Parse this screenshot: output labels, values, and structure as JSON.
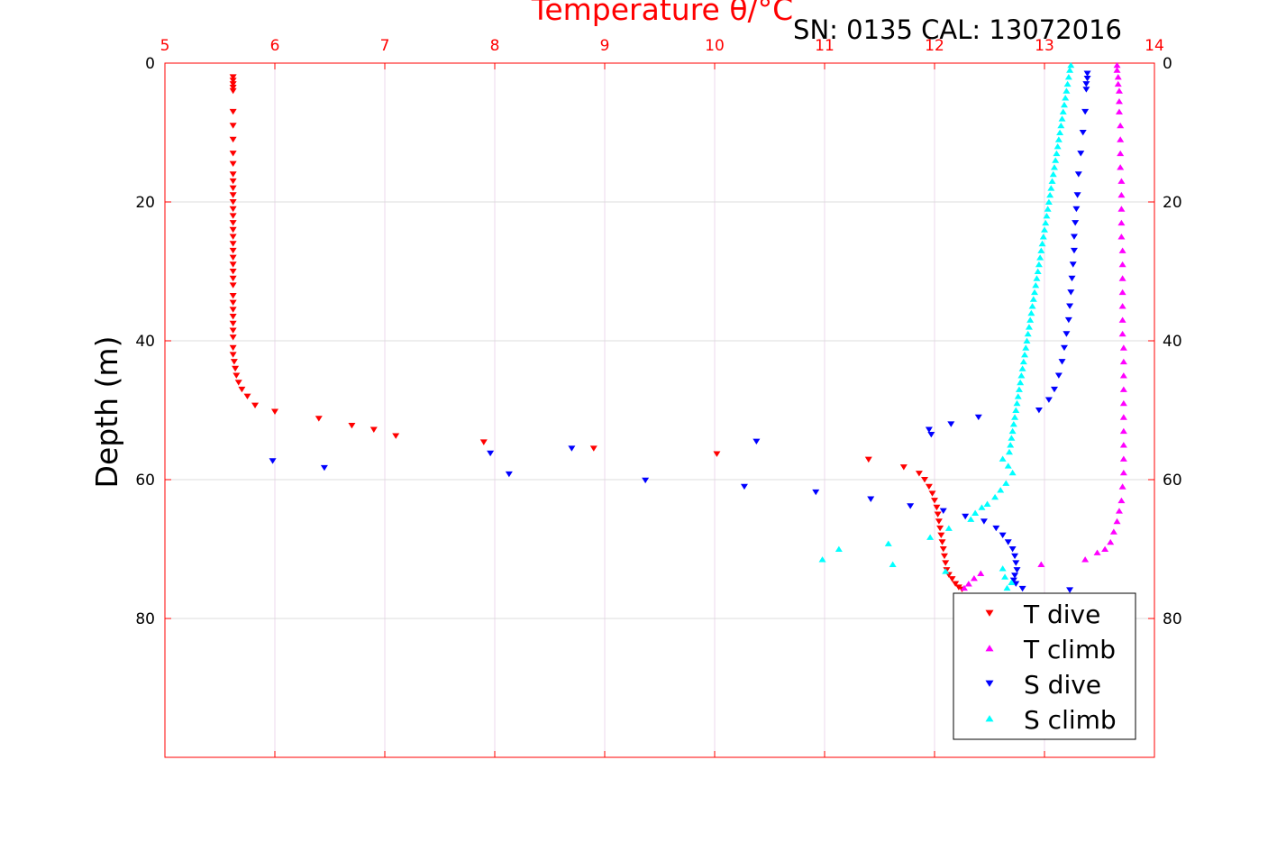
{
  "chart_data": {
    "type": "scatter",
    "title": "Temperature θ/°C",
    "subtitle": "SN: 0135  CAL: 13072016",
    "xlabel": "Temperature θ/°C",
    "ylabel": "Depth (m)",
    "xlim": [
      5,
      14
    ],
    "ylim": [
      0,
      100
    ],
    "y_reversed": true,
    "x_ticks": [
      "5",
      "6",
      "7",
      "8",
      "9",
      "10",
      "11",
      "12",
      "13",
      "14"
    ],
    "y_ticks": [
      "0",
      "20",
      "40",
      "60",
      "80"
    ],
    "grid": true,
    "legend_position": "bottom-right",
    "series": [
      {
        "name": "T dive",
        "color": "#ff0000",
        "marker": "triangle-down",
        "points": [
          [
            5.62,
            2
          ],
          [
            5.62,
            2.5
          ],
          [
            5.62,
            3
          ],
          [
            5.62,
            3.5
          ],
          [
            5.62,
            4
          ],
          [
            5.62,
            7
          ],
          [
            5.62,
            9
          ],
          [
            5.62,
            11
          ],
          [
            5.62,
            13
          ],
          [
            5.62,
            14.5
          ],
          [
            5.62,
            16
          ],
          [
            5.62,
            17
          ],
          [
            5.62,
            18
          ],
          [
            5.62,
            19
          ],
          [
            5.62,
            20
          ],
          [
            5.62,
            21
          ],
          [
            5.62,
            22
          ],
          [
            5.62,
            23
          ],
          [
            5.62,
            24
          ],
          [
            5.62,
            25
          ],
          [
            5.62,
            26
          ],
          [
            5.62,
            27
          ],
          [
            5.62,
            28
          ],
          [
            5.62,
            29
          ],
          [
            5.62,
            30
          ],
          [
            5.62,
            31
          ],
          [
            5.62,
            32
          ],
          [
            5.62,
            33.5
          ],
          [
            5.62,
            34.5
          ],
          [
            5.62,
            35.5
          ],
          [
            5.62,
            36.5
          ],
          [
            5.62,
            37.5
          ],
          [
            5.62,
            38.5
          ],
          [
            5.62,
            39.5
          ],
          [
            5.62,
            41
          ],
          [
            5.62,
            42
          ],
          [
            5.63,
            43
          ],
          [
            5.64,
            44
          ],
          [
            5.65,
            45
          ],
          [
            5.67,
            46
          ],
          [
            5.7,
            47
          ],
          [
            5.75,
            48
          ],
          [
            5.82,
            49.3
          ],
          [
            6.0,
            50.2
          ],
          [
            6.4,
            51.2
          ],
          [
            6.7,
            52.2
          ],
          [
            6.9,
            52.8
          ],
          [
            7.1,
            53.7
          ],
          [
            7.9,
            54.6
          ],
          [
            8.9,
            55.5
          ],
          [
            10.02,
            56.3
          ],
          [
            11.4,
            57.1
          ],
          [
            11.72,
            58.2
          ],
          [
            11.86,
            59.1
          ],
          [
            11.91,
            60
          ],
          [
            11.95,
            61
          ],
          [
            11.98,
            62
          ],
          [
            12.0,
            63
          ],
          [
            12.02,
            64
          ],
          [
            12.03,
            65
          ],
          [
            12.04,
            66
          ],
          [
            12.05,
            67
          ],
          [
            12.06,
            68
          ],
          [
            12.07,
            69
          ],
          [
            12.08,
            70
          ],
          [
            12.09,
            71
          ],
          [
            12.1,
            72
          ],
          [
            12.11,
            73
          ],
          [
            12.13,
            73.7
          ],
          [
            12.16,
            74.3
          ],
          [
            12.19,
            75
          ],
          [
            12.22,
            75.5
          ],
          [
            12.25,
            75.8
          ]
        ]
      },
      {
        "name": "T climb",
        "color": "#ff00ff",
        "marker": "triangle-up",
        "points": [
          [
            13.66,
            0.3
          ],
          [
            13.66,
            1
          ],
          [
            13.67,
            2
          ],
          [
            13.67,
            3
          ],
          [
            13.68,
            4
          ],
          [
            13.68,
            5.5
          ],
          [
            13.68,
            7
          ],
          [
            13.69,
            9
          ],
          [
            13.69,
            11
          ],
          [
            13.69,
            13
          ],
          [
            13.69,
            15
          ],
          [
            13.7,
            17
          ],
          [
            13.7,
            19
          ],
          [
            13.7,
            21
          ],
          [
            13.7,
            23
          ],
          [
            13.7,
            25
          ],
          [
            13.71,
            27
          ],
          [
            13.71,
            29
          ],
          [
            13.71,
            31
          ],
          [
            13.71,
            33
          ],
          [
            13.71,
            35
          ],
          [
            13.71,
            37
          ],
          [
            13.71,
            39
          ],
          [
            13.72,
            41
          ],
          [
            13.72,
            43
          ],
          [
            13.72,
            45
          ],
          [
            13.72,
            47
          ],
          [
            13.72,
            49
          ],
          [
            13.72,
            51
          ],
          [
            13.72,
            53
          ],
          [
            13.72,
            55
          ],
          [
            13.72,
            57
          ],
          [
            13.72,
            59
          ],
          [
            13.71,
            61
          ],
          [
            13.7,
            63
          ],
          [
            13.68,
            64.5
          ],
          [
            13.66,
            66
          ],
          [
            13.63,
            67.5
          ],
          [
            13.6,
            69
          ],
          [
            13.55,
            70
          ],
          [
            13.48,
            70.5
          ],
          [
            13.37,
            71.5
          ],
          [
            12.97,
            72.2
          ],
          [
            12.42,
            73.5
          ],
          [
            12.36,
            74.2
          ],
          [
            12.31,
            75
          ],
          [
            12.27,
            75.6
          ]
        ]
      },
      {
        "name": "S dive",
        "color": "#0000ff",
        "marker": "triangle-down",
        "points": [
          [
            13.39,
            1.5
          ],
          [
            13.39,
            2.2
          ],
          [
            13.38,
            3
          ],
          [
            13.38,
            3.8
          ],
          [
            13.37,
            7
          ],
          [
            13.35,
            10
          ],
          [
            13.33,
            13
          ],
          [
            13.31,
            16
          ],
          [
            13.3,
            19
          ],
          [
            13.29,
            21
          ],
          [
            13.28,
            23
          ],
          [
            13.27,
            25
          ],
          [
            13.27,
            27
          ],
          [
            13.26,
            29
          ],
          [
            13.25,
            31
          ],
          [
            13.24,
            33
          ],
          [
            13.23,
            35
          ],
          [
            13.22,
            37
          ],
          [
            13.2,
            39
          ],
          [
            13.18,
            41
          ],
          [
            13.16,
            43
          ],
          [
            13.13,
            45
          ],
          [
            13.09,
            47
          ],
          [
            13.04,
            48.5
          ],
          [
            12.95,
            50
          ],
          [
            12.4,
            51
          ],
          [
            12.15,
            52
          ],
          [
            11.95,
            52.8
          ],
          [
            11.97,
            53.5
          ],
          [
            10.38,
            54.5
          ],
          [
            8.7,
            55.5
          ],
          [
            7.96,
            56.2
          ],
          [
            5.98,
            57.3
          ],
          [
            6.45,
            58.3
          ],
          [
            8.13,
            59.2
          ],
          [
            9.37,
            60.1
          ],
          [
            10.27,
            61
          ],
          [
            10.92,
            61.8
          ],
          [
            11.42,
            62.8
          ],
          [
            11.78,
            63.8
          ],
          [
            12.08,
            64.5
          ],
          [
            12.28,
            65.3
          ],
          [
            12.45,
            66
          ],
          [
            12.56,
            67
          ],
          [
            12.62,
            68
          ],
          [
            12.67,
            69
          ],
          [
            12.71,
            70
          ],
          [
            12.73,
            71
          ],
          [
            12.74,
            72
          ],
          [
            12.75,
            73
          ],
          [
            12.73,
            73.8
          ],
          [
            12.72,
            74.5
          ],
          [
            12.74,
            75
          ],
          [
            12.8,
            75.7
          ],
          [
            13.23,
            75.9
          ]
        ]
      },
      {
        "name": "S climb",
        "color": "#00ffff",
        "marker": "triangle-up",
        "points": [
          [
            13.24,
            0.3
          ],
          [
            13.23,
            1
          ],
          [
            13.22,
            2
          ],
          [
            13.21,
            3
          ],
          [
            13.2,
            4
          ],
          [
            13.19,
            5
          ],
          [
            13.18,
            6
          ],
          [
            13.17,
            7
          ],
          [
            13.16,
            8
          ],
          [
            13.15,
            9
          ],
          [
            13.14,
            10
          ],
          [
            13.13,
            11
          ],
          [
            13.12,
            12
          ],
          [
            13.11,
            13
          ],
          [
            13.1,
            14
          ],
          [
            13.09,
            15
          ],
          [
            13.08,
            16
          ],
          [
            13.07,
            17
          ],
          [
            13.06,
            18
          ],
          [
            13.05,
            19
          ],
          [
            13.04,
            20
          ],
          [
            13.03,
            21
          ],
          [
            13.02,
            22
          ],
          [
            13.01,
            23
          ],
          [
            13.0,
            24
          ],
          [
            12.99,
            25
          ],
          [
            12.98,
            26
          ],
          [
            12.97,
            27
          ],
          [
            12.96,
            28
          ],
          [
            12.95,
            29
          ],
          [
            12.94,
            30
          ],
          [
            12.93,
            31
          ],
          [
            12.92,
            32
          ],
          [
            12.91,
            33
          ],
          [
            12.9,
            34
          ],
          [
            12.89,
            35
          ],
          [
            12.88,
            36
          ],
          [
            12.87,
            37
          ],
          [
            12.86,
            38
          ],
          [
            12.85,
            39
          ],
          [
            12.84,
            40
          ],
          [
            12.83,
            41
          ],
          [
            12.82,
            42
          ],
          [
            12.81,
            43
          ],
          [
            12.8,
            44
          ],
          [
            12.79,
            45
          ],
          [
            12.78,
            46
          ],
          [
            12.77,
            47
          ],
          [
            12.76,
            48
          ],
          [
            12.75,
            49
          ],
          [
            12.74,
            50
          ],
          [
            12.73,
            51
          ],
          [
            12.72,
            52
          ],
          [
            12.71,
            53
          ],
          [
            12.7,
            54
          ],
          [
            12.69,
            55
          ],
          [
            12.68,
            56
          ],
          [
            12.62,
            57
          ],
          [
            12.67,
            58
          ],
          [
            12.71,
            59
          ],
          [
            12.65,
            60.5
          ],
          [
            12.6,
            61.5
          ],
          [
            12.55,
            62.5
          ],
          [
            12.48,
            63.5
          ],
          [
            12.43,
            64
          ],
          [
            12.37,
            64.8
          ],
          [
            12.33,
            65.7
          ],
          [
            12.13,
            67
          ],
          [
            11.96,
            68.3
          ],
          [
            11.58,
            69.2
          ],
          [
            11.13,
            70
          ],
          [
            10.98,
            71.5
          ],
          [
            11.62,
            72.2
          ],
          [
            12.62,
            72.8
          ],
          [
            12.1,
            73.2
          ],
          [
            12.64,
            74
          ],
          [
            12.7,
            74.8
          ],
          [
            12.66,
            75.6
          ]
        ]
      }
    ]
  }
}
